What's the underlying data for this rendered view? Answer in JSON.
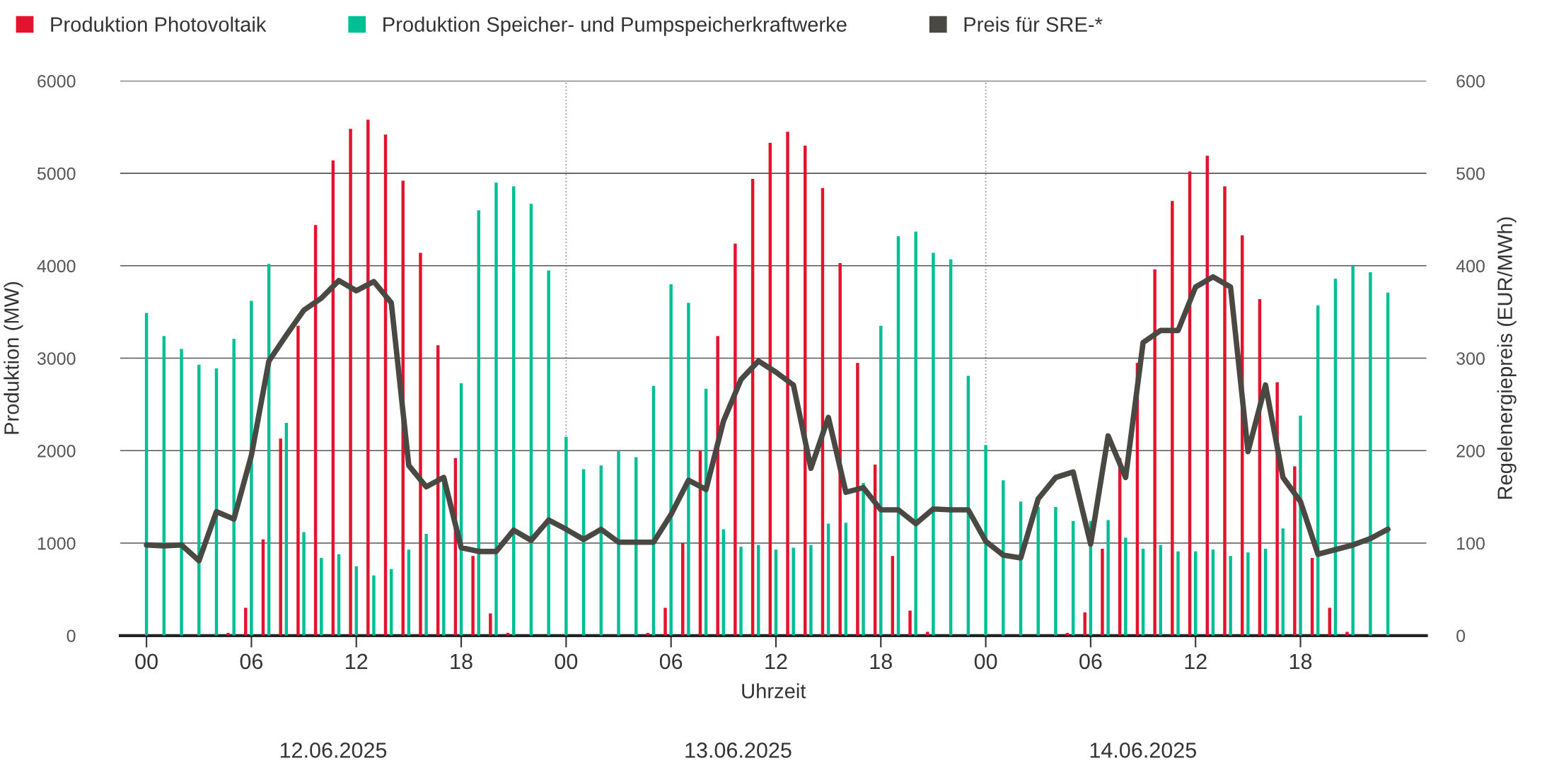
{
  "chart_data": {
    "type": "bar",
    "x": [
      0,
      1,
      2,
      3,
      4,
      5,
      6,
      7,
      8,
      9,
      10,
      11,
      12,
      13,
      14,
      15,
      16,
      17,
      18,
      19,
      20,
      21,
      22,
      23,
      24,
      25,
      26,
      27,
      28,
      29,
      30,
      31,
      32,
      33,
      34,
      35,
      36,
      37,
      38,
      39,
      40,
      41,
      42,
      43,
      44,
      45,
      46,
      47,
      48,
      49,
      50,
      51,
      52,
      53,
      54,
      55,
      56,
      57,
      58,
      59,
      60,
      61,
      62,
      63,
      64,
      65,
      66,
      67,
      68,
      69,
      70,
      71
    ],
    "series": [
      {
        "name": "Produktion Photovoltaik",
        "color": "#e3122d",
        "values": [
          0,
          0,
          0,
          0,
          0,
          30,
          300,
          1040,
          2130,
          3350,
          4440,
          5140,
          5480,
          5580,
          5420,
          4920,
          4140,
          3140,
          1920,
          860,
          240,
          30,
          0,
          0,
          0,
          0,
          0,
          0,
          0,
          30,
          300,
          1000,
          2000,
          3240,
          4240,
          4940,
          5330,
          5450,
          5300,
          4840,
          4030,
          2950,
          1850,
          860,
          270,
          40,
          0,
          0,
          0,
          0,
          0,
          0,
          0,
          30,
          250,
          940,
          1920,
          2950,
          3960,
          4700,
          5020,
          5190,
          4860,
          4330,
          3640,
          2740,
          1830,
          840,
          300,
          40,
          0,
          0
        ]
      },
      {
        "name": "Produktion Speicher- und Pumpspeicherkraftwerke",
        "color": "#00bf95",
        "values": [
          3490,
          3240,
          3100,
          2930,
          2890,
          3210,
          3620,
          4020,
          2300,
          1120,
          840,
          880,
          750,
          650,
          720,
          930,
          1100,
          1690,
          2730,
          4600,
          4900,
          4860,
          4670,
          3950,
          2150,
          1800,
          1840,
          2000,
          1930,
          2700,
          3800,
          3600,
          2670,
          1150,
          960,
          980,
          930,
          950,
          980,
          1210,
          1220,
          1650,
          3350,
          4320,
          4370,
          4140,
          4070,
          2810,
          2060,
          1680,
          1450,
          1390,
          1390,
          1240,
          1240,
          1250,
          1060,
          940,
          980,
          910,
          910,
          930,
          860,
          900,
          940,
          1160,
          2380,
          3570,
          3860,
          4000,
          3930,
          3710
        ]
      },
      {
        "name": "Preis für SRE-*",
        "type": "line",
        "axis": "y2",
        "color": "#4a4843",
        "values": [
          98,
          97,
          98,
          81,
          134,
          126,
          195,
          297,
          325,
          352,
          365,
          384,
          373,
          383,
          360,
          184,
          161,
          171,
          95,
          91,
          91,
          114,
          103,
          125,
          115,
          104,
          115,
          101,
          101,
          101,
          131,
          168,
          158,
          232,
          277,
          297,
          285,
          271,
          181,
          236,
          155,
          160,
          136,
          136,
          121,
          137,
          136,
          136,
          102,
          87,
          84,
          148,
          171,
          177,
          99,
          216,
          171,
          317,
          330,
          330,
          377,
          388,
          377,
          199,
          271,
          171,
          145,
          88,
          93,
          98,
          105,
          115
        ]
      }
    ],
    "xlim": [
      -1.5,
      73.2
    ],
    "xticks": [
      {
        "value": 0,
        "label": "00"
      },
      {
        "value": 6,
        "label": "06"
      },
      {
        "value": 12,
        "label": "12"
      },
      {
        "value": 18,
        "label": "18"
      },
      {
        "value": 24,
        "label": "00"
      },
      {
        "value": 30,
        "label": "06"
      },
      {
        "value": 36,
        "label": "12"
      },
      {
        "value": 42,
        "label": "18"
      },
      {
        "value": 48,
        "label": "00"
      },
      {
        "value": 54,
        "label": "06"
      },
      {
        "value": 60,
        "label": "12"
      },
      {
        "value": 66,
        "label": "18"
      }
    ],
    "ylim": [
      0,
      6000
    ],
    "yticks": [
      0,
      1000,
      2000,
      3000,
      4000,
      5000,
      6000
    ],
    "y2lim": [
      0,
      600
    ],
    "y2ticks": [
      0,
      100,
      200,
      300,
      400,
      500,
      600
    ],
    "xlabel": "Uhrzeit",
    "ylabel": "Produktion (MW)",
    "y2label": "Regelenergiepreis (EUR/MWh)",
    "ref_lines": [
      {
        "axis": "x",
        "value": 24,
        "color": "#999999",
        "line_style": "dotted"
      },
      {
        "axis": "x",
        "value": 48,
        "color": "#999999",
        "line_style": "dotted"
      }
    ],
    "annotations": [
      "12.06.2025",
      "13.06.2025",
      "14.06.2025"
    ],
    "grid": "y",
    "legend": "top"
  }
}
